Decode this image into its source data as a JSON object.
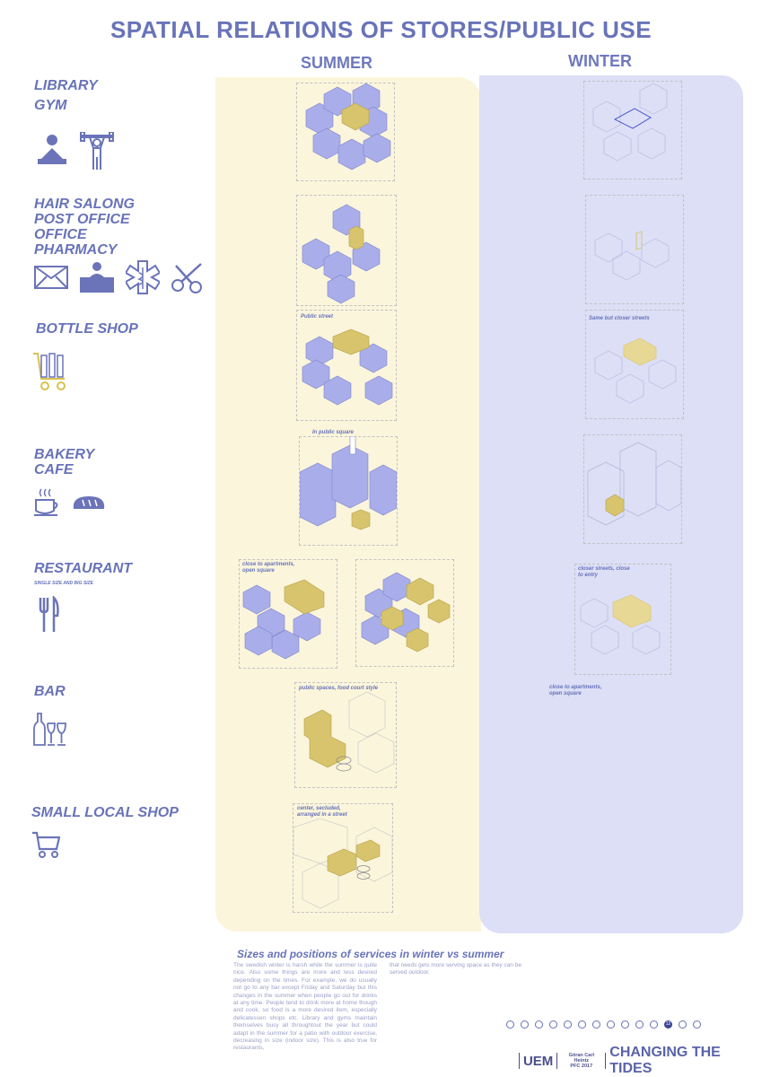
{
  "title": "SPATIAL RELATIONS OF STORES/PUBLIC USE",
  "seasons": {
    "summer": "SUMMER",
    "winter": "WINTER"
  },
  "categories": [
    {
      "lines": [
        "LIBRARY",
        "GYM"
      ]
    },
    {
      "lines": [
        "HAIR SALONG",
        "POST OFFICE",
        "OFFICE",
        "PHARMACY"
      ]
    },
    {
      "lines": [
        "BOTTLE SHOP"
      ]
    },
    {
      "lines": [
        "BAKERY",
        "CAFE"
      ]
    },
    {
      "lines": [
        "RESTAURANT"
      ],
      "sub": "SINGLE SIZE AND BIG SIZE"
    },
    {
      "lines": [
        "BAR"
      ]
    },
    {
      "lines": [
        "SMALL LOCAL SHOP"
      ]
    }
  ],
  "notes": {
    "summer_bottle": "Public street",
    "winter_bottle": "Same but closer streets",
    "summer_bakery": "In public square",
    "summer_restaurant_1": "close to apartments,",
    "summer_restaurant_2": "open square",
    "winter_restaurant_1": "closer streets, close",
    "winter_restaurant_2": "to entry",
    "summer_bar": "public spaces, food court style",
    "winter_bar_1": "close to apartments,",
    "winter_bar_2": "open square",
    "summer_shop_1": "center, secluded,",
    "summer_shop_2": "arranged in a street"
  },
  "description": {
    "title": "Sizes and positions of services in winter vs summer",
    "col1": "The swedish winter is harsh while the summer is quite nice. Also some things are more and less desired depending on the times. For example, we do usually not go to any bar except Friday and Saturday but this changes in the summer when people go out for drinks at any time. People tend to drink more at home though and cook, so food is a more desired item, especially delicatessen shops etc. Library and gyms maintain themselves busy all throughtout the year but could adapt in the summer for a patio with outdoor exercise, decreasing in size (indoor size). This is also true for restaurants,",
    "col2": "that needs gets more serving space as they can be served outdoor."
  },
  "pagination": {
    "total": 14,
    "active_index": 11,
    "active_label": "12"
  },
  "footer": {
    "logo": "UEM",
    "author": "Göran Carl Heintz",
    "course": "PFC 2017",
    "project": "CHANGING THE TIDES"
  },
  "colors": {
    "accent": "#6873b9",
    "summer_bg": "#fbf5dc",
    "winter_bg": "#dcdff6",
    "block": "#a9aeea",
    "highlight": "#d8c46c"
  }
}
